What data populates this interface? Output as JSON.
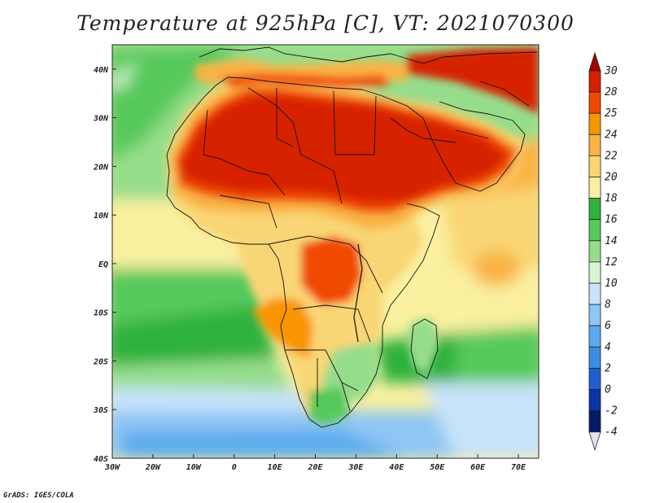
{
  "title": "Temperature at 925hPa [C], VT: 2021070300",
  "credit": "GrADS: IGES/COLA",
  "map": {
    "region": "Africa and Arabian Peninsula",
    "lon_range": [
      -30,
      75
    ],
    "lat_range": [
      -40,
      45
    ],
    "lon_ticks": [
      "30W",
      "20W",
      "10W",
      "0",
      "10E",
      "20E",
      "30E",
      "40E",
      "50E",
      "60E",
      "70E"
    ],
    "lat_ticks": [
      "40N",
      "30N",
      "20N",
      "10N",
      "EQ",
      "10S",
      "20S",
      "30S",
      "40S"
    ]
  },
  "colorbar": {
    "labels": [
      "30",
      "28",
      "25",
      "24",
      "22",
      "20",
      "18",
      "16",
      "14",
      "12",
      "10",
      "8",
      "6",
      "4",
      "2",
      "0",
      "-2",
      "-4"
    ],
    "colors": [
      "#a50000",
      "#d72000",
      "#f04a00",
      "#f99500",
      "#f9b344",
      "#f9d674",
      "#faf0a0",
      "#2fb13c",
      "#56c95c",
      "#96dd8b",
      "#d6f6d4",
      "#c8e3fa",
      "#8fc6f4",
      "#5aaaee",
      "#3c8ce4",
      "#1f5fd0",
      "#0b33a8",
      "#071a68",
      "#e1e1f4"
    ]
  }
}
